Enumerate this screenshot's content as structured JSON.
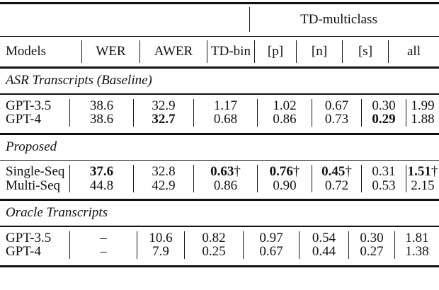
{
  "table": {
    "group_header": {
      "label": "TD-multiclass"
    },
    "columns": [
      "Models",
      "WER",
      "AWER",
      "TD-bin",
      "[p]",
      "[n]",
      "[s]",
      "all"
    ],
    "sections": [
      {
        "label": "ASR Transcripts (Baseline)",
        "rows": [
          {
            "model": "GPT-3.5",
            "cells": [
              {
                "v": "38.6"
              },
              {
                "v": "32.9"
              },
              {
                "v": "1.17"
              },
              {
                "v": "1.02"
              },
              {
                "v": "0.67"
              },
              {
                "v": "0.30"
              },
              {
                "v": "1.99"
              }
            ]
          },
          {
            "model": "GPT-4",
            "cells": [
              {
                "v": "38.6"
              },
              {
                "v": "32.7"
              },
              {
                "v": "0.68"
              },
              {
                "v": "0.86"
              },
              {
                "v": "0.73"
              },
              {
                "v": "0.29"
              },
              {
                "v": "1.88"
              }
            ]
          }
        ]
      },
      {
        "label": "Proposed",
        "rows": [
          {
            "model": "Single-Seq",
            "cells": [
              {
                "v": "37.6"
              },
              {
                "v": "32.8"
              },
              {
                "v": "0.63",
                "sup": "†"
              },
              {
                "v": "0.76",
                "sup": "†"
              },
              {
                "v": "0.45",
                "sup": "†"
              },
              {
                "v": "0.31"
              },
              {
                "v": "1.51",
                "sup": "†"
              }
            ]
          },
          {
            "model": "Multi-Seq",
            "cells": [
              {
                "v": "44.8"
              },
              {
                "v": "42.9"
              },
              {
                "v": "0.86"
              },
              {
                "v": "0.90"
              },
              {
                "v": "0.72"
              },
              {
                "v": "0.53"
              },
              {
                "v": "2.15"
              }
            ]
          }
        ]
      },
      {
        "label": "Oracle Transcripts",
        "rows": [
          {
            "model": "GPT-3.5",
            "cells": [
              {
                "v": "–"
              },
              {
                "v": "10.6"
              },
              {
                "v": "0.82"
              },
              {
                "v": "0.97"
              },
              {
                "v": "0.54"
              },
              {
                "v": "0.30"
              },
              {
                "v": "1.81"
              }
            ]
          },
          {
            "model": "GPT-4",
            "cells": [
              {
                "v": "–"
              },
              {
                "v": "7.9"
              },
              {
                "v": "0.25"
              },
              {
                "v": "0.67"
              },
              {
                "v": "0.44"
              },
              {
                "v": "0.27"
              },
              {
                "v": "1.38"
              }
            ]
          }
        ]
      }
    ]
  }
}
